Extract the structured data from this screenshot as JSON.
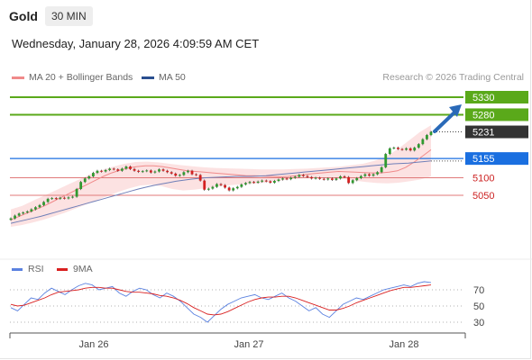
{
  "header": {
    "symbol": "Gold",
    "timeframe": "30 MIN",
    "timestamp": "Wednesday, January 28, 2026 4:09:59 AM CET"
  },
  "legend": {
    "ma20_label": "MA 20 + Bollinger Bands",
    "ma50_label": "MA 50",
    "credit": "Research © 2026 Trading Central",
    "rsi_label": "RSI",
    "ma9_label": "9MA"
  },
  "colors": {
    "up": "#2f9a2f",
    "down": "#d42020",
    "resistance": "#5aa91a",
    "last_price": "#333333",
    "pivot": "#1a6fe0",
    "support": "#e07a7a",
    "support_text": "#cc2222",
    "ma20": "#f08a8a",
    "bollinger": "#fbd8d8",
    "ma50": "#6f7fb8",
    "rsi": "#5b82e0",
    "rsi_ma9": "#d92020",
    "arrow": "#2a6ab8"
  },
  "chart_data": {
    "type": "candlestick",
    "instrument": "Gold",
    "interval": "30 MIN",
    "x_ticks": [
      "Jan 26",
      "Jan 27",
      "Jan 28"
    ],
    "levels": [
      {
        "value": 5330,
        "kind": "resistance"
      },
      {
        "value": 5280,
        "kind": "resistance"
      },
      {
        "value": 5231,
        "kind": "last"
      },
      {
        "value": 5155,
        "kind": "pivot"
      },
      {
        "value": 5100,
        "kind": "support"
      },
      {
        "value": 5050,
        "kind": "support"
      }
    ],
    "close": [
      4984,
      4992,
      4998,
      5001,
      5004,
      5010,
      5016,
      5022,
      5031,
      5040,
      5042,
      5040,
      5043,
      5041,
      5044,
      5046,
      5068,
      5088,
      5098,
      5104,
      5114,
      5120,
      5118,
      5122,
      5126,
      5124,
      5120,
      5126,
      5132,
      5125,
      5120,
      5117,
      5119,
      5121,
      5115,
      5118,
      5124,
      5120,
      5116,
      5112,
      5106,
      5108,
      5116,
      5120,
      5110,
      5108,
      5092,
      5066,
      5069,
      5074,
      5082,
      5079,
      5072,
      5064,
      5070,
      5074,
      5081,
      5085,
      5088,
      5086,
      5089,
      5092,
      5090,
      5086,
      5091,
      5095,
      5098,
      5096,
      5100,
      5103,
      5108,
      5105,
      5102,
      5098,
      5100,
      5097,
      5095,
      5098,
      5094,
      5098,
      5104,
      5102,
      5085,
      5093,
      5099,
      5105,
      5110,
      5106,
      5110,
      5116,
      5130,
      5168,
      5184,
      5186,
      5182,
      5180,
      5184,
      5178,
      5186,
      5196,
      5210,
      5222,
      5231
    ],
    "ma50": [
      4970,
      4975,
      4980,
      4985,
      4990,
      4996,
      5002,
      5008,
      5014,
      5020,
      5026,
      5032,
      5038,
      5044,
      5050,
      5056,
      5062,
      5068,
      5073,
      5078,
      5082,
      5086,
      5090,
      5093,
      5096,
      5098,
      5100,
      5101,
      5102,
      5103,
      5104,
      5104,
      5104,
      5105,
      5106,
      5108,
      5110,
      5112,
      5114,
      5116,
      5118,
      5120,
      5122,
      5124,
      5126,
      5128,
      5130,
      5132,
      5134,
      5136,
      5138,
      5140,
      5141,
      5142,
      5144,
      5146,
      5148
    ],
    "ma20": [
      4980,
      4990,
      5000,
      5010,
      5020,
      5032,
      5044,
      5056,
      5068,
      5080,
      5092,
      5104,
      5114,
      5122,
      5128,
      5132,
      5134,
      5134,
      5132,
      5128,
      5124,
      5120,
      5118,
      5116,
      5114,
      5112,
      5110,
      5108,
      5106,
      5106,
      5105,
      5104,
      5103,
      5104,
      5106,
      5109,
      5112,
      5114,
      5116,
      5118,
      5117,
      5116,
      5115,
      5114,
      5114,
      5116,
      5120,
      5130,
      5145,
      5162,
      5180
    ],
    "bollinger_upper": [
      5010,
      5020,
      5035,
      5050,
      5065,
      5080,
      5095,
      5110,
      5122,
      5132,
      5140,
      5145,
      5146,
      5144,
      5140,
      5136,
      5133,
      5130,
      5128,
      5127,
      5126,
      5125,
      5124,
      5124,
      5124,
      5125,
      5126,
      5128,
      5130,
      5132,
      5136,
      5140,
      5148,
      5160,
      5180,
      5205,
      5230,
      5250
    ],
    "bollinger_lower": [
      4960,
      4965,
      4972,
      4980,
      4990,
      5000,
      5012,
      5024,
      5036,
      5048,
      5060,
      5070,
      5078,
      5080,
      5076,
      5068,
      5064,
      5066,
      5070,
      5074,
      5078,
      5080,
      5082,
      5084,
      5088,
      5092,
      5096,
      5098,
      5099,
      5099,
      5098,
      5096,
      5092,
      5088,
      5085,
      5084,
      5086,
      5090,
      5095,
      5104
    ],
    "rsi": {
      "ticks": [
        30,
        50,
        70
      ],
      "ylim": [
        20,
        85
      ],
      "rsi_values": [
        48,
        44,
        52,
        60,
        58,
        66,
        72,
        68,
        64,
        70,
        75,
        78,
        76,
        70,
        72,
        74,
        66,
        62,
        68,
        72,
        70,
        64,
        60,
        66,
        62,
        56,
        48,
        40,
        36,
        30,
        38,
        46,
        52,
        56,
        60,
        62,
        64,
        60,
        58,
        62,
        66,
        60,
        56,
        50,
        44,
        48,
        40,
        36,
        44,
        52,
        56,
        60,
        58,
        62,
        66,
        70,
        72,
        74,
        76,
        74,
        78,
        80,
        79
      ],
      "ma9_values": [
        52,
        50,
        51,
        54,
        57,
        60,
        64,
        67,
        68,
        69,
        70,
        72,
        73,
        73,
        72,
        72,
        70,
        68,
        67,
        67,
        66,
        65,
        63,
        62,
        60,
        57,
        53,
        48,
        44,
        40,
        39,
        40,
        43,
        47,
        51,
        55,
        58,
        60,
        61,
        61,
        62,
        62,
        60,
        57,
        54,
        51,
        48,
        45,
        45,
        47,
        50,
        54,
        57,
        60,
        63,
        66,
        69,
        71,
        73,
        73,
        74,
        75,
        76
      ]
    }
  }
}
